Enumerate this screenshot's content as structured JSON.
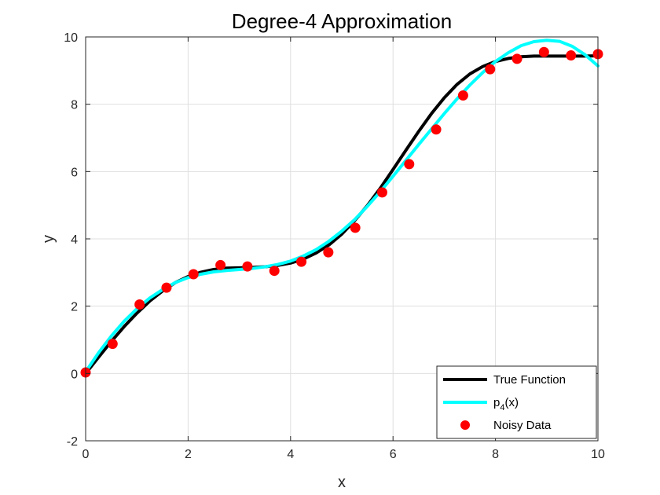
{
  "chart_data": {
    "type": "line",
    "title": "Degree-4 Approximation",
    "xlabel": "x",
    "ylabel": "y",
    "xlim": [
      0,
      10
    ],
    "ylim": [
      -2,
      10
    ],
    "xticks": [
      0,
      2,
      4,
      6,
      8,
      10
    ],
    "yticks": [
      -2,
      0,
      2,
      4,
      6,
      8,
      10
    ],
    "grid": true,
    "legend_position": "bottom-right",
    "series": [
      {
        "name": "True Function",
        "kind": "line",
        "color": "#000000",
        "x": [
          0,
          0.25,
          0.5,
          0.75,
          1.0,
          1.25,
          1.5,
          1.75,
          2.0,
          2.25,
          2.5,
          2.75,
          3.0,
          3.25,
          3.5,
          3.75,
          4.0,
          4.25,
          4.5,
          4.75,
          5.0,
          5.25,
          5.5,
          5.75,
          6.0,
          6.25,
          6.5,
          6.75,
          7.0,
          7.25,
          7.5,
          7.75,
          8.0,
          8.25,
          8.5,
          8.75,
          9.0,
          9.25,
          9.5,
          9.75,
          10.0
        ],
        "y": [
          0,
          0.48,
          0.95,
          1.39,
          1.79,
          2.15,
          2.45,
          2.7,
          2.88,
          3.01,
          3.09,
          3.13,
          3.14,
          3.15,
          3.17,
          3.21,
          3.28,
          3.4,
          3.58,
          3.82,
          4.14,
          4.54,
          4.99,
          5.5,
          6.06,
          6.63,
          7.19,
          7.72,
          8.19,
          8.59,
          8.9,
          9.12,
          9.27,
          9.36,
          9.41,
          9.43,
          9.43,
          9.43,
          9.43,
          9.43,
          9.44
        ]
      },
      {
        "name": "p_4(x)",
        "kind": "line",
        "color": "#00ffff",
        "x": [
          0,
          0.25,
          0.5,
          0.75,
          1.0,
          1.25,
          1.5,
          1.75,
          2.0,
          2.25,
          2.5,
          2.75,
          3.0,
          3.25,
          3.5,
          3.75,
          4.0,
          4.25,
          4.5,
          4.75,
          5.0,
          5.25,
          5.5,
          5.75,
          6.0,
          6.25,
          6.5,
          6.75,
          7.0,
          7.25,
          7.5,
          7.75,
          8.0,
          8.25,
          8.5,
          8.75,
          9.0,
          9.25,
          9.5,
          9.75,
          10.0
        ],
        "y": [
          0.05,
          0.61,
          1.11,
          1.55,
          1.92,
          2.24,
          2.49,
          2.7,
          2.85,
          2.95,
          3.02,
          3.06,
          3.09,
          3.12,
          3.17,
          3.24,
          3.34,
          3.49,
          3.68,
          3.93,
          4.23,
          4.57,
          4.97,
          5.4,
          5.86,
          6.33,
          6.8,
          7.26,
          7.72,
          8.16,
          8.57,
          8.94,
          9.27,
          9.53,
          9.74,
          9.86,
          9.9,
          9.87,
          9.72,
          9.47,
          9.14
        ]
      },
      {
        "name": "Noisy Data",
        "kind": "scatter",
        "color": "#ff0000",
        "x": [
          0,
          0.526,
          1.053,
          1.579,
          2.105,
          2.632,
          3.158,
          3.684,
          4.211,
          4.737,
          5.263,
          5.789,
          6.316,
          6.842,
          7.368,
          7.895,
          8.421,
          8.947,
          9.474,
          10.0
        ],
        "y": [
          0.03,
          0.88,
          2.05,
          2.55,
          2.95,
          3.22,
          3.18,
          3.05,
          3.32,
          3.6,
          4.33,
          5.38,
          6.22,
          7.25,
          8.26,
          9.04,
          9.35,
          9.55,
          9.45,
          9.49
        ]
      }
    ],
    "legend": {
      "entries": [
        {
          "label": "True Function",
          "color": "#000000",
          "kind": "line"
        },
        {
          "label_main": "p",
          "label_sub": "4",
          "label_tail": "(x)",
          "color": "#00ffff",
          "kind": "line"
        },
        {
          "label": "Noisy Data",
          "color": "#ff0000",
          "kind": "marker"
        }
      ]
    }
  }
}
